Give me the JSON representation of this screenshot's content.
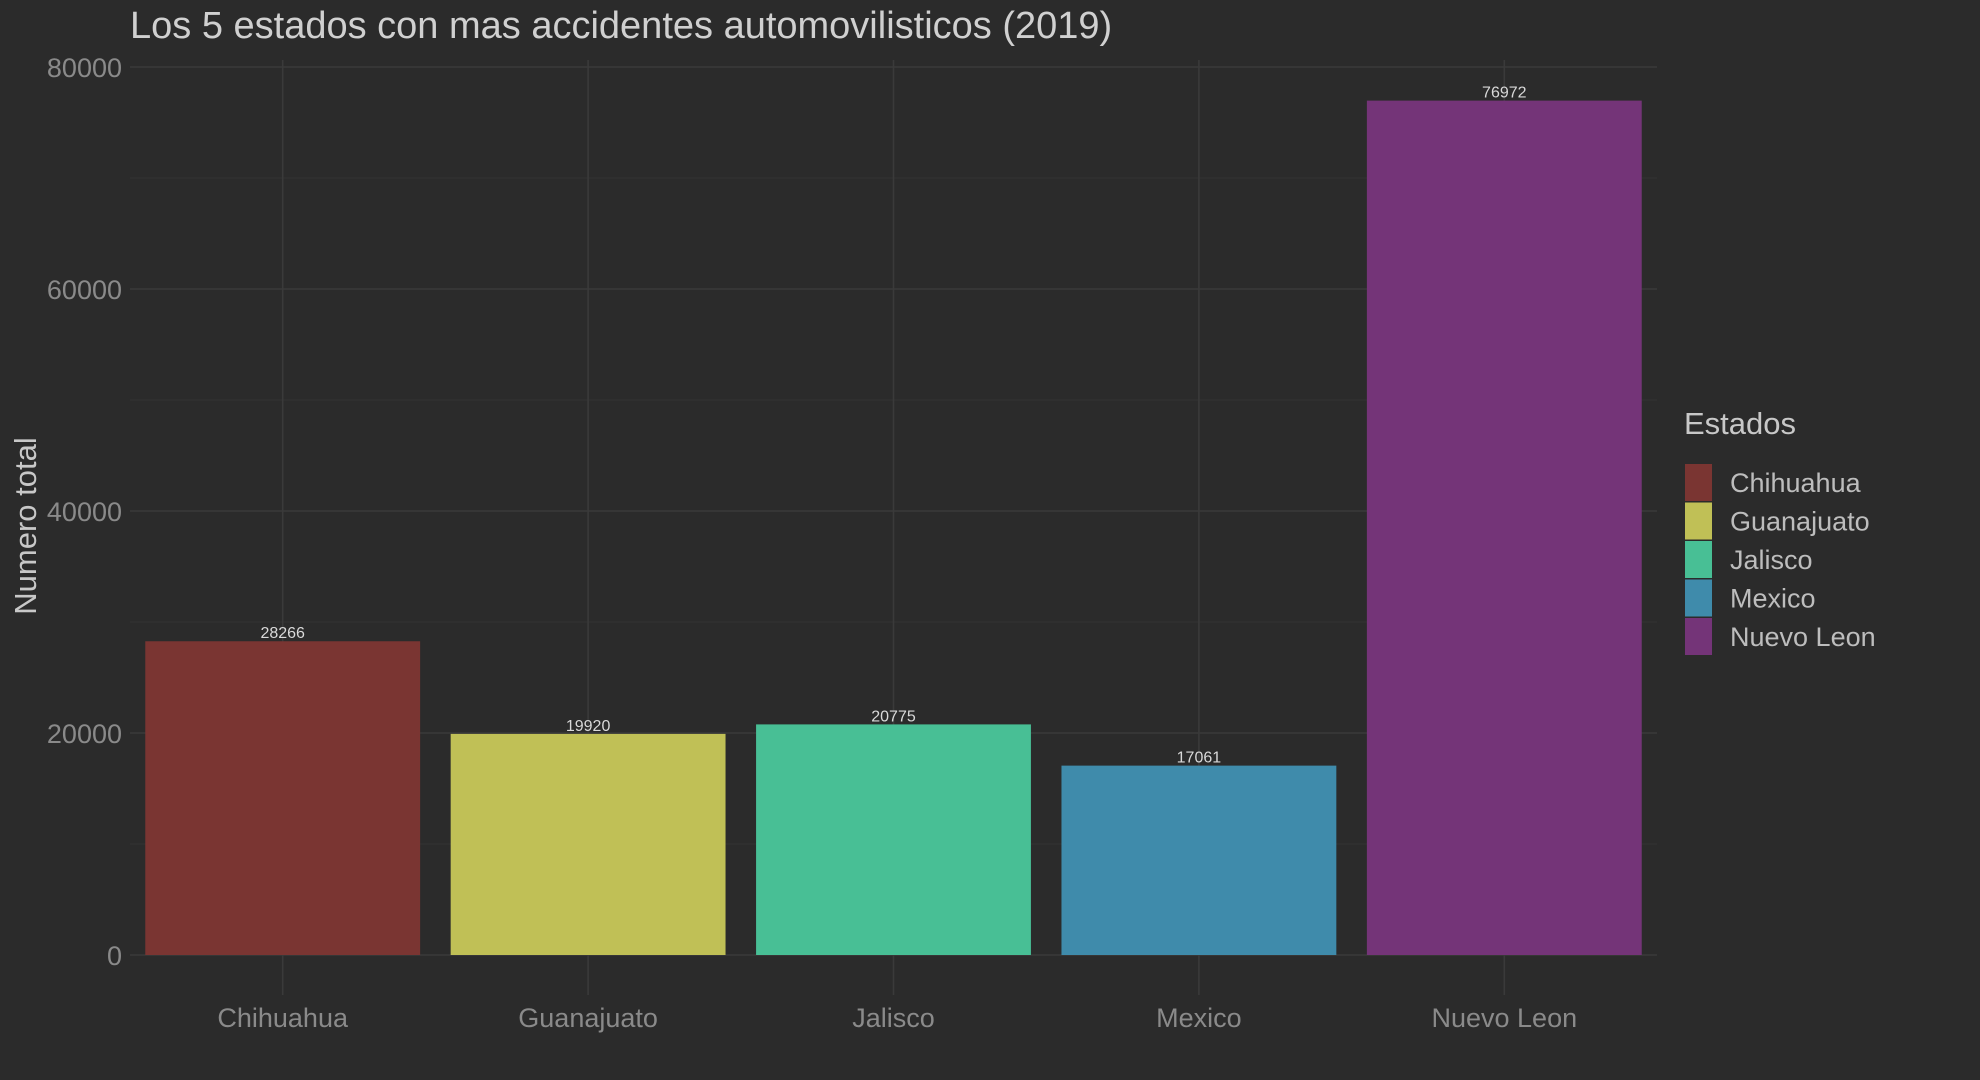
{
  "chart_data": {
    "type": "bar",
    "title": "Los 5 estados con mas accidentes automovilisticos (2019)",
    "xlabel": "",
    "ylabel": "Numero total",
    "categories": [
      "Chihuahua",
      "Guanajuato",
      "Jalisco",
      "Mexico",
      "Nuevo Leon"
    ],
    "values": [
      28266,
      19920,
      20775,
      17061,
      76972
    ],
    "value_labels": [
      "28266",
      "19920",
      "20775",
      "17061",
      "76972"
    ],
    "colors": [
      "#7a3532",
      "#c0c056",
      "#48bf95",
      "#3f8bab",
      "#743478"
    ],
    "ylim": [
      0,
      80000
    ],
    "yticks": [
      0,
      20000,
      40000,
      60000,
      80000
    ],
    "ytick_labels": [
      "0",
      "20000",
      "40000",
      "60000",
      "80000"
    ],
    "grid": true,
    "legend": {
      "title": "Estados",
      "placement": "right",
      "entries": [
        "Chihuahua",
        "Guanajuato",
        "Jalisco",
        "Mexico",
        "Nuevo Leon"
      ]
    }
  },
  "theme": {
    "background": "#2b2b2b",
    "title_color": "#d0d0d0",
    "axis_text_color": "#8a8a8a",
    "ylabel_color": "#c8c8c8",
    "legend_text_color": "#bdbdbd"
  }
}
